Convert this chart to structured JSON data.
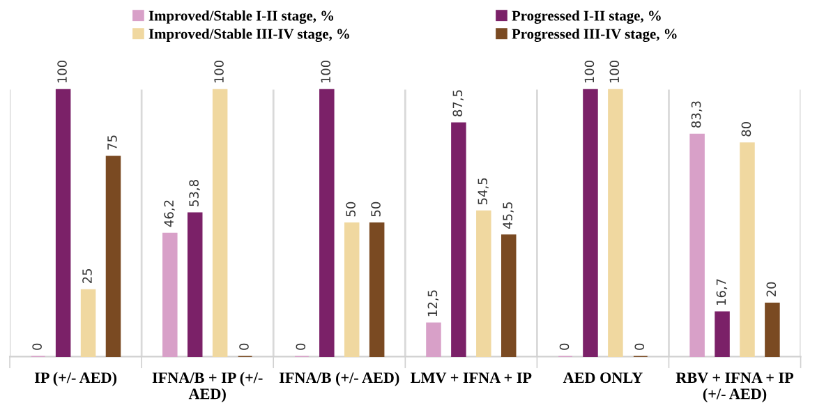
{
  "chart_data": {
    "type": "bar",
    "categories": [
      "IP (+/- AED)",
      "IFNA/B + IP (+/- AED)",
      "IFNA/B (+/- AED)",
      "LMV + IFNA + IP",
      "AED ONLY",
      "RBV + IFNA + IP (+/- AED)"
    ],
    "series": [
      {
        "name": "Improved/Stable I-II stage, %",
        "color": "#d8a0c8",
        "values": [
          0,
          46.2,
          0,
          12.5,
          0,
          83.3
        ],
        "value_labels": [
          "0",
          "46,2",
          "0",
          "12,5",
          "0",
          "83,3"
        ]
      },
      {
        "name": "Progressed I-II stage, %",
        "color": "#7b2168",
        "values": [
          100,
          53.8,
          100,
          87.5,
          100,
          16.7
        ],
        "value_labels": [
          "100",
          "53,8",
          "100",
          "87,5",
          "100",
          "16,7"
        ]
      },
      {
        "name": "Improved/Stable III-IV stage, %",
        "color": "#f0d8a0",
        "values": [
          25,
          100,
          50,
          54.5,
          100,
          80
        ],
        "value_labels": [
          "25",
          "100",
          "50",
          "54,5",
          "100",
          "80"
        ]
      },
      {
        "name": "Progressed III-IV stage, %",
        "color": "#7a4a22",
        "values": [
          75,
          0,
          50,
          45.5,
          0,
          20
        ],
        "value_labels": [
          "75",
          "0",
          "50",
          "45,5",
          "0",
          "20"
        ]
      }
    ],
    "legend": "top",
    "grid": "x"
  }
}
